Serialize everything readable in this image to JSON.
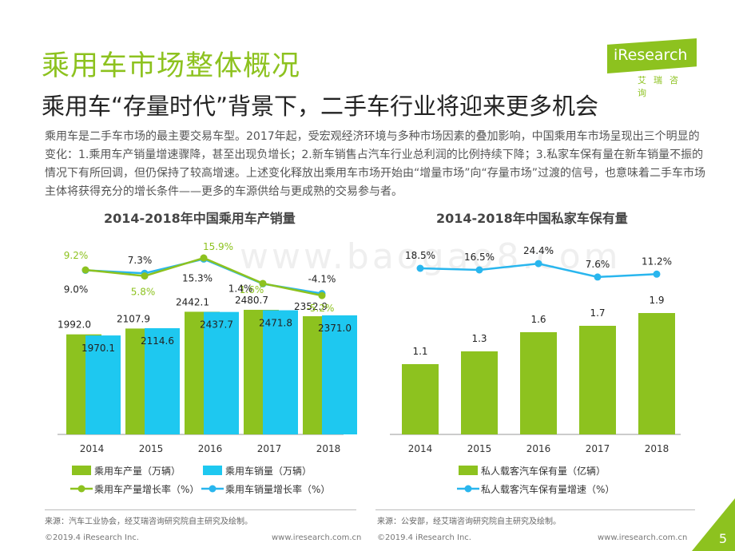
{
  "header": {
    "title": "乘用车市场整体概况",
    "subtitle": "乘用车“存量时代”背景下，二手车行业将迎来更多机会",
    "logo_text": "iResearch",
    "logo_sub": "艾瑞咨询"
  },
  "intro": "乘用车是二手车市场的最主要交易车型。2017年起，受宏观经济环境与多种市场因素的叠加影响，中国乘用车市场呈现出三个明显的变化：1.乘用车产销量增速骤降，甚至出现负增长；2.新车销售占汽车行业总利润的比例持续下降；3.私家车保有量在新车销量不振的情况下有所回调，但仍保持了较高增速。上述变化释放出乘用车市场开始由“增量市场”向“存量市场”过渡的信号，也意味着二手车市场主体将获得充分的增长条件——更多的车源供给与更成熟的交易参与者。",
  "watermark": "www.baogao8.com",
  "colors": {
    "green": "#8dc21f",
    "blue": "#1ec8f0",
    "line_blue": "#29b6ee"
  },
  "chart_data": [
    {
      "type": "bar",
      "title": "2014-2018年中国乘用车产销量",
      "categories": [
        "2014",
        "2015",
        "2016",
        "2017",
        "2018"
      ],
      "series": [
        {
          "name": "乘用车产量（万辆）",
          "type": "bar",
          "color": "#8dc21f",
          "values": [
            1992.0,
            2107.9,
            2442.1,
            2480.7,
            2352.9
          ],
          "labels": [
            "1992.0",
            "2107.9",
            "2442.1",
            "2480.7",
            "2352.9"
          ]
        },
        {
          "name": "乘用车销量（万辆）",
          "type": "bar",
          "color": "#1ec8f0",
          "values": [
            1970.1,
            2114.6,
            2437.7,
            2471.8,
            2371.0
          ],
          "labels": [
            "1970.1",
            "2114.6",
            "2437.7",
            "2471.8",
            "2371.0"
          ]
        },
        {
          "name": "乘用车产量增长率（%）",
          "type": "line",
          "color": "#8dc21f",
          "values": [
            9.2,
            5.8,
            15.9,
            1.6,
            -5.2
          ],
          "labels": [
            "9.2%",
            "5.8%",
            "15.9%",
            "1.6%",
            "-5.2%"
          ]
        },
        {
          "name": "乘用车销量增长率（%）",
          "type": "line",
          "color": "#29b6ee",
          "values": [
            9.0,
            7.3,
            15.3,
            1.4,
            -4.1
          ],
          "labels": [
            "9.0%",
            "7.3%",
            "15.3%",
            "1.4%",
            "-4.1%"
          ]
        }
      ],
      "source": "来源：汽车工业协会，经艾瑞咨询研究院自主研究及绘制。"
    },
    {
      "type": "bar",
      "title": "2014-2018年中国私家车保有量",
      "categories": [
        "2014",
        "2015",
        "2016",
        "2017",
        "2018"
      ],
      "series": [
        {
          "name": "私人载客汽车保有量（亿辆）",
          "type": "bar",
          "color": "#8dc21f",
          "values": [
            1.1,
            1.3,
            1.6,
            1.7,
            1.9
          ],
          "labels": [
            "1.1",
            "1.3",
            "1.6",
            "1.7",
            "1.9"
          ]
        },
        {
          "name": "私人载客汽车保有量增速（%）",
          "type": "line",
          "color": "#29b6ee",
          "values": [
            18.5,
            16.5,
            24.4,
            7.6,
            11.2
          ],
          "labels": [
            "18.5%",
            "16.5%",
            "24.4%",
            "7.6%",
            "11.2%"
          ]
        }
      ],
      "source": "来源：公安部，经艾瑞咨询研究院自主研究及绘制。"
    }
  ],
  "footer": {
    "copyright": "©2019.4 iResearch Inc.",
    "url": "www.iresearch.com.cn",
    "page": "5"
  }
}
